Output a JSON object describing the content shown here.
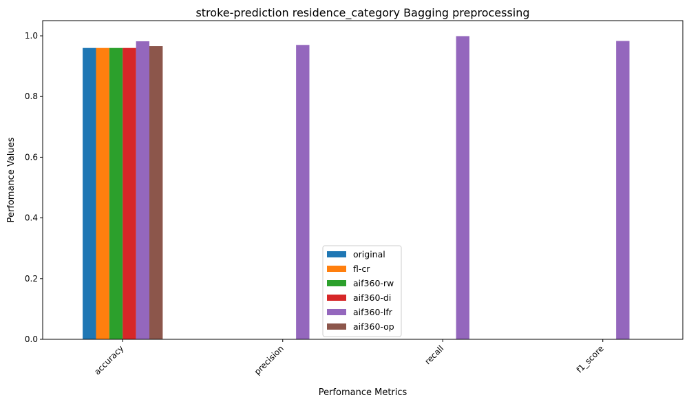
{
  "chart_data": {
    "type": "bar",
    "title": "stroke-prediction residence_category Bagging preprocessing",
    "xlabel": "Perfomance Metrics",
    "ylabel": "Perfomance Values",
    "categories": [
      "accuracy",
      "precision",
      "recall",
      "f1_score"
    ],
    "ylim": [
      0,
      1.05
    ],
    "yticks": [
      "0.0",
      "0.2",
      "0.4",
      "0.6",
      "0.8",
      "1.0"
    ],
    "grid": false,
    "legend_position": "lower-center",
    "series": [
      {
        "name": "original",
        "color": "#1f77b4",
        "values": [
          0.96,
          0.0,
          0.0,
          0.0
        ]
      },
      {
        "name": "fl-cr",
        "color": "#ff7f0e",
        "values": [
          0.96,
          0.0,
          0.0,
          0.0
        ]
      },
      {
        "name": "aif360-rw",
        "color": "#2ca02c",
        "values": [
          0.96,
          0.0,
          0.0,
          0.0
        ]
      },
      {
        "name": "aif360-di",
        "color": "#d62728",
        "values": [
          0.96,
          0.0,
          0.0,
          0.0
        ]
      },
      {
        "name": "aif360-lfr",
        "color": "#9467bd",
        "values": [
          0.982,
          0.97,
          0.999,
          0.983
        ]
      },
      {
        "name": "aif360-op",
        "color": "#8c564b",
        "values": [
          0.966,
          0.0,
          0.0,
          0.0
        ]
      }
    ]
  }
}
